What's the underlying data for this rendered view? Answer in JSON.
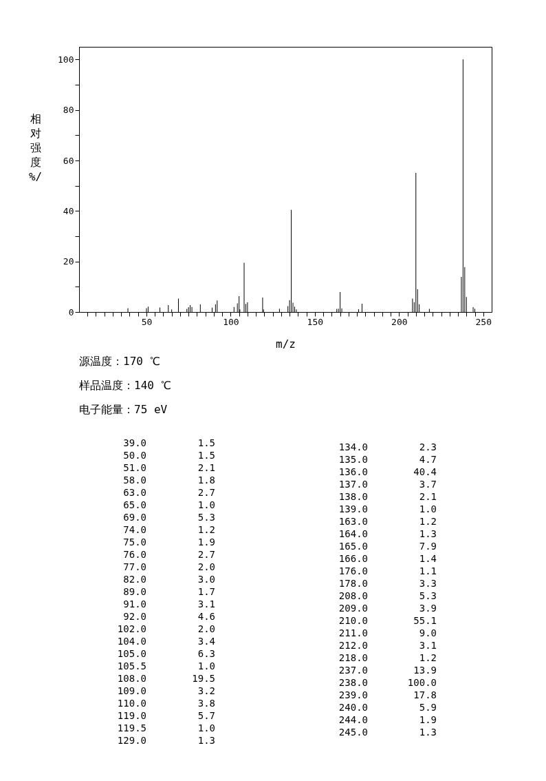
{
  "chart_data": [
    {
      "type": "bar",
      "xlabel": "m/z",
      "ylabel": "相对强度%/",
      "x": [
        39.0,
        50.0,
        51.0,
        58.0,
        63.0,
        65.0,
        69.0,
        74.0,
        75.0,
        76.0,
        77.0,
        82.0,
        89.0,
        91.0,
        92.0,
        102.0,
        104.0,
        105.0,
        105.5,
        108.0,
        109.0,
        110.0,
        119.0,
        119.5,
        129.0,
        134.0,
        135.0,
        136.0,
        137.0,
        138.0,
        139.0,
        163.0,
        164.0,
        165.0,
        166.0,
        176.0,
        178.0,
        208.0,
        209.0,
        210.0,
        211.0,
        212.0,
        218.0,
        237.0,
        238.0,
        239.0,
        240.0,
        244.0,
        245.0
      ],
      "values": [
        1.5,
        1.5,
        2.1,
        1.8,
        2.7,
        1.0,
        5.3,
        1.2,
        1.9,
        2.7,
        2.0,
        3.0,
        1.7,
        3.1,
        4.6,
        2.0,
        3.4,
        6.3,
        1.0,
        19.5,
        3.2,
        3.8,
        5.7,
        1.0,
        1.3,
        2.3,
        4.7,
        40.4,
        3.7,
        2.1,
        1.0,
        1.2,
        1.3,
        7.9,
        1.4,
        1.1,
        3.3,
        5.3,
        3.9,
        55.1,
        9.0,
        3.1,
        1.2,
        13.9,
        100.0,
        17.8,
        5.9,
        1.9,
        1.3
      ],
      "color": "#000000",
      "grid": false,
      "xlim": [
        10,
        255
      ],
      "xticks": [
        {
          "value": 15,
          "label": null
        },
        {
          "value": 20,
          "label": null
        },
        {
          "value": 25,
          "label": null
        },
        {
          "value": 30,
          "label": null
        },
        {
          "value": 35,
          "label": null
        },
        {
          "value": 40,
          "label": null
        },
        {
          "value": 45,
          "label": null
        },
        50,
        {
          "value": 55,
          "label": null
        },
        {
          "value": 60,
          "label": null
        },
        {
          "value": 65,
          "label": null
        },
        {
          "value": 70,
          "label": null
        },
        {
          "value": 75,
          "label": null
        },
        {
          "value": 80,
          "label": null
        },
        {
          "value": 85,
          "label": null
        },
        {
          "value": 90,
          "label": null
        },
        {
          "value": 95,
          "label": null
        },
        100,
        {
          "value": 105,
          "label": null
        },
        {
          "value": 110,
          "label": null
        },
        {
          "value": 115,
          "label": null
        },
        {
          "value": 120,
          "label": null
        },
        {
          "value": 125,
          "label": null
        },
        {
          "value": 130,
          "label": null
        },
        {
          "value": 135,
          "label": null
        },
        {
          "value": 140,
          "label": null
        },
        {
          "value": 145,
          "label": null
        },
        150,
        {
          "value": 155,
          "label": null
        },
        {
          "value": 160,
          "label": null
        },
        {
          "value": 165,
          "label": null
        },
        {
          "value": 170,
          "label": null
        },
        {
          "value": 175,
          "label": null
        },
        {
          "value": 180,
          "label": null
        },
        {
          "value": 185,
          "label": null
        },
        {
          "value": 190,
          "label": null
        },
        {
          "value": 195,
          "label": null
        },
        200,
        {
          "value": 205,
          "label": null
        },
        {
          "value": 210,
          "label": null
        },
        {
          "value": 215,
          "label": null
        },
        {
          "value": 220,
          "label": null
        },
        {
          "value": 225,
          "label": null
        },
        {
          "value": 230,
          "label": null
        },
        {
          "value": 235,
          "label": null
        },
        {
          "value": 240,
          "label": null
        },
        {
          "value": 245,
          "label": null
        },
        250
      ],
      "ylim": [
        0,
        105
      ],
      "yticks": [
        0,
        {
          "value": 10,
          "label": null
        },
        20,
        {
          "value": 30,
          "label": null
        },
        40,
        {
          "value": 50,
          "label": null
        },
        60,
        {
          "value": 70,
          "label": null
        },
        80,
        {
          "value": 90,
          "label": null
        },
        100
      ],
      "annotations": [
        "源温度：170 ℃",
        "样品温度：140 ℃",
        "电子能量：75 eV"
      ]
    },
    {
      "type": "other",
      "categories": [
        "39.0",
        "50.0",
        "51.0",
        "58.0",
        "63.0",
        "65.0",
        "69.0",
        "74.0",
        "75.0",
        "76.0",
        "77.0",
        "82.0",
        "89.0",
        "91.0",
        "92.0",
        "102.0",
        "104.0",
        "105.0",
        "105.5",
        "108.0",
        "109.0",
        "110.0",
        "119.0",
        "119.5",
        "129.0",
        "134.0",
        "135.0",
        "136.0",
        "137.0",
        "138.0",
        "139.0",
        "163.0",
        "164.0",
        "165.0",
        "166.0",
        "176.0",
        "178.0",
        "208.0",
        "209.0",
        "210.0",
        "211.0",
        "212.0",
        "218.0",
        "237.0",
        "238.0",
        "239.0",
        "240.0",
        "244.0",
        "245.0"
      ],
      "value_labels": [
        "1.5",
        "1.5",
        "2.1",
        "1.8",
        "2.7",
        "1.0",
        "5.3",
        "1.2",
        "1.9",
        "2.7",
        "2.0",
        "3.0",
        "1.7",
        "3.1",
        "4.6",
        "2.0",
        "3.4",
        "6.3",
        "1.0",
        "19.5",
        "3.2",
        "3.8",
        "5.7",
        "1.0",
        "1.3",
        "2.3",
        "4.7",
        "40.4",
        "3.7",
        "2.1",
        "1.0",
        "1.2",
        "1.3",
        "7.9",
        "1.4",
        "1.1",
        "3.3",
        "5.3",
        "3.9",
        "55.1",
        "9.0",
        "3.1",
        "1.2",
        "13.9",
        "100.0",
        "17.8",
        "5.9",
        "1.9",
        "1.3"
      ]
    }
  ]
}
